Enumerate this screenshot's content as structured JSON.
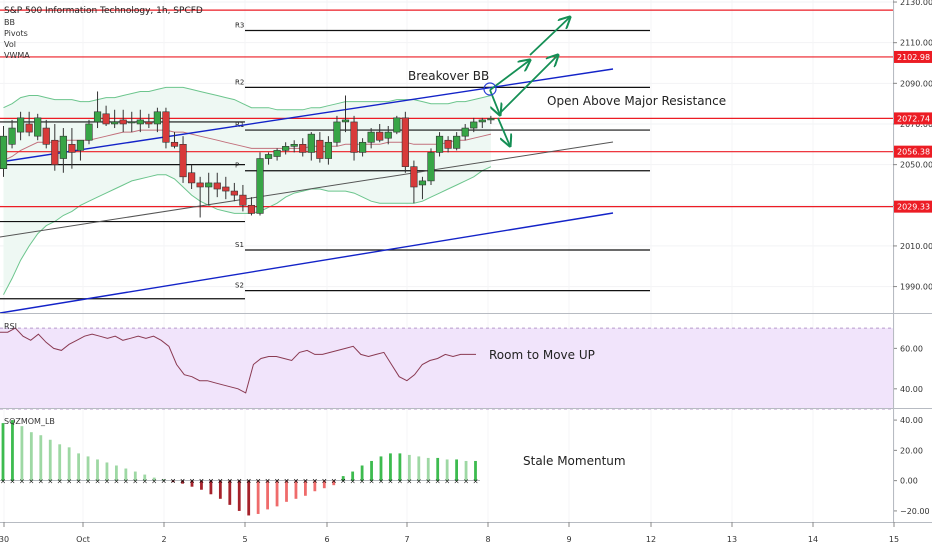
{
  "chart_data": {
    "type": "candlestick",
    "title": "S&P 500 Information Technology, 1h, SPCFD",
    "indicators": [
      "BB",
      "Pivots",
      "Vol",
      "VWMA"
    ],
    "price_axis": {
      "ylim": [
        1977,
        2131
      ],
      "ticks": [
        1990,
        2010,
        2030,
        2050,
        2070,
        2090,
        2110,
        2130
      ],
      "tick_labels": [
        "1990.00",
        "2010.00",
        "2030.00",
        "2050.00",
        "2070.00",
        "2090.00",
        "2110.00",
        "2130.00"
      ]
    },
    "x_axis": {
      "labels": [
        "30",
        "Oct",
        "2",
        "5",
        "6",
        "7",
        "8",
        "9",
        "12",
        "13",
        "14",
        "15"
      ]
    },
    "price_badges": [
      {
        "value": "2102.98",
        "price": 2102.98
      },
      {
        "value": "2072.74",
        "price": 2072.74
      },
      {
        "value": "2056.38",
        "price": 2056.38
      },
      {
        "value": "2029.33",
        "price": 2029.33
      }
    ],
    "horizontal_levels": [
      2126,
      2102.98,
      2072.74,
      2056.38,
      2029.33
    ],
    "pivots_left": [
      2071,
      2050,
      2022,
      1984
    ],
    "pivots_right": [
      {
        "label": "R3",
        "price": 2116
      },
      {
        "label": "R2",
        "price": 2088
      },
      {
        "label": "R1",
        "price": 2067
      },
      {
        "label": "P",
        "price": 2047
      },
      {
        "label": "S1",
        "price": 2008
      },
      {
        "label": "S2",
        "price": 1988
      }
    ],
    "candles": [
      {
        "o": 2048,
        "h": 2069,
        "l": 2044,
        "c": 2064
      },
      {
        "o": 2060,
        "h": 2072,
        "l": 2058,
        "c": 2068
      },
      {
        "o": 2066,
        "h": 2076,
        "l": 2062,
        "c": 2073
      },
      {
        "o": 2070,
        "h": 2076,
        "l": 2064,
        "c": 2066
      },
      {
        "o": 2064,
        "h": 2075,
        "l": 2062,
        "c": 2073
      },
      {
        "o": 2068,
        "h": 2072,
        "l": 2058,
        "c": 2060
      },
      {
        "o": 2062,
        "h": 2070,
        "l": 2047,
        "c": 2050
      },
      {
        "o": 2053,
        "h": 2068,
        "l": 2046,
        "c": 2064
      },
      {
        "o": 2060,
        "h": 2068,
        "l": 2048,
        "c": 2056
      },
      {
        "o": 2057,
        "h": 2062,
        "l": 2052,
        "c": 2062
      },
      {
        "o": 2062,
        "h": 2072,
        "l": 2060,
        "c": 2070
      },
      {
        "o": 2071,
        "h": 2086,
        "l": 2068,
        "c": 2076
      },
      {
        "o": 2075,
        "h": 2079,
        "l": 2069,
        "c": 2070
      },
      {
        "o": 2070,
        "h": 2077,
        "l": 2068,
        "c": 2071
      },
      {
        "o": 2072,
        "h": 2077,
        "l": 2066,
        "c": 2070
      },
      {
        "o": 2071,
        "h": 2076,
        "l": 2066,
        "c": 2071
      },
      {
        "o": 2070,
        "h": 2077,
        "l": 2066,
        "c": 2072
      },
      {
        "o": 2071,
        "h": 2075,
        "l": 2068,
        "c": 2070
      },
      {
        "o": 2070,
        "h": 2078,
        "l": 2066,
        "c": 2076
      },
      {
        "o": 2076,
        "h": 2078,
        "l": 2058,
        "c": 2061
      },
      {
        "o": 2061,
        "h": 2066,
        "l": 2058,
        "c": 2059
      },
      {
        "o": 2060,
        "h": 2064,
        "l": 2041,
        "c": 2044
      },
      {
        "o": 2046,
        "h": 2050,
        "l": 2038,
        "c": 2041
      },
      {
        "o": 2041,
        "h": 2044,
        "l": 2024,
        "c": 2039
      },
      {
        "o": 2039,
        "h": 2046,
        "l": 2030,
        "c": 2041
      },
      {
        "o": 2041,
        "h": 2046,
        "l": 2034,
        "c": 2038
      },
      {
        "o": 2039,
        "h": 2044,
        "l": 2033,
        "c": 2037
      },
      {
        "o": 2037,
        "h": 2041,
        "l": 2032,
        "c": 2035
      },
      {
        "o": 2035,
        "h": 2040,
        "l": 2027,
        "c": 2030
      },
      {
        "o": 2030,
        "h": 2034,
        "l": 2025,
        "c": 2026
      },
      {
        "o": 2026,
        "h": 2056,
        "l": 2025,
        "c": 2053
      },
      {
        "o": 2053,
        "h": 2056,
        "l": 2050,
        "c": 2055
      },
      {
        "o": 2054,
        "h": 2058,
        "l": 2052,
        "c": 2057
      },
      {
        "o": 2057,
        "h": 2061,
        "l": 2055,
        "c": 2059
      },
      {
        "o": 2059,
        "h": 2062,
        "l": 2056,
        "c": 2060
      },
      {
        "o": 2060,
        "h": 2063,
        "l": 2054,
        "c": 2056
      },
      {
        "o": 2056,
        "h": 2066,
        "l": 2052,
        "c": 2065
      },
      {
        "o": 2062,
        "h": 2066,
        "l": 2051,
        "c": 2053
      },
      {
        "o": 2053,
        "h": 2064,
        "l": 2050,
        "c": 2061
      },
      {
        "o": 2061,
        "h": 2074,
        "l": 2059,
        "c": 2071
      },
      {
        "o": 2071,
        "h": 2084,
        "l": 2066,
        "c": 2072
      },
      {
        "o": 2071,
        "h": 2074,
        "l": 2052,
        "c": 2056
      },
      {
        "o": 2056,
        "h": 2063,
        "l": 2054,
        "c": 2061
      },
      {
        "o": 2061,
        "h": 2068,
        "l": 2058,
        "c": 2066
      },
      {
        "o": 2066,
        "h": 2070,
        "l": 2061,
        "c": 2062
      },
      {
        "o": 2063,
        "h": 2069,
        "l": 2060,
        "c": 2066
      },
      {
        "o": 2066,
        "h": 2074,
        "l": 2065,
        "c": 2073
      },
      {
        "o": 2073,
        "h": 2076,
        "l": 2046,
        "c": 2049
      },
      {
        "o": 2049,
        "h": 2052,
        "l": 2031,
        "c": 2039
      },
      {
        "o": 2040,
        "h": 2044,
        "l": 2033,
        "c": 2042
      },
      {
        "o": 2042,
        "h": 2058,
        "l": 2040,
        "c": 2056
      },
      {
        "o": 2056,
        "h": 2066,
        "l": 2054,
        "c": 2064
      },
      {
        "o": 2062,
        "h": 2064,
        "l": 2056,
        "c": 2058
      },
      {
        "o": 2058,
        "h": 2066,
        "l": 2057,
        "c": 2064
      },
      {
        "o": 2064,
        "h": 2070,
        "l": 2062,
        "c": 2068
      },
      {
        "o": 2068,
        "h": 2073,
        "l": 2066,
        "c": 2071
      },
      {
        "o": 2071,
        "h": 2073,
        "l": 2068,
        "c": 2072
      },
      {
        "o": 2072,
        "h": 2074,
        "l": 2070,
        "c": 2072.7
      }
    ],
    "bb_upper": [
      2078,
      2080,
      2083,
      2084,
      2084,
      2083,
      2082,
      2082,
      2082,
      2081,
      2081,
      2082,
      2083,
      2083,
      2084,
      2085,
      2086,
      2086,
      2087,
      2088,
      2088,
      2088,
      2087,
      2086,
      2085,
      2084,
      2083,
      2082,
      2080,
      2078,
      2078,
      2078,
      2077,
      2077,
      2077,
      2077,
      2078,
      2078,
      2079,
      2080,
      2081,
      2081,
      2081,
      2081,
      2081,
      2081,
      2082,
      2082,
      2082,
      2081,
      2080,
      2080,
      2080,
      2081,
      2081,
      2082,
      2083,
      2084
    ],
    "bb_middle": [
      2052,
      2054,
      2057,
      2059,
      2061,
      2061,
      2061,
      2062,
      2062,
      2062,
      2062,
      2063,
      2064,
      2065,
      2066,
      2066,
      2067,
      2067,
      2067,
      2067,
      2066,
      2066,
      2065,
      2064,
      2063,
      2062,
      2061,
      2060,
      2059,
      2058,
      2058,
      2058,
      2058,
      2058,
      2058,
      2058,
      2059,
      2059,
      2059,
      2059,
      2060,
      2060,
      2060,
      2060,
      2060,
      2061,
      2061,
      2061,
      2060,
      2060,
      2060,
      2060,
      2061,
      2062,
      2062,
      2063,
      2064,
      2065
    ],
    "bb_lower": [
      1986,
      1994,
      2003,
      2010,
      2016,
      2020,
      2022,
      2025,
      2027,
      2030,
      2032,
      2034,
      2036,
      2038,
      2040,
      2042,
      2043,
      2044,
      2045,
      2045,
      2043,
      2039,
      2035,
      2032,
      2030,
      2028,
      2027,
      2026,
      2026,
      2026,
      2027,
      2029,
      2031,
      2034,
      2036,
      2037,
      2038,
      2038,
      2037,
      2037,
      2037,
      2036,
      2034,
      2032,
      2031,
      2031,
      2031,
      2031,
      2031,
      2032,
      2034,
      2036,
      2038,
      2040,
      2042,
      2044,
      2047,
      2049
    ],
    "bb_start_index": 0,
    "rsi": {
      "label": "RSI",
      "ylim": [
        32,
        76
      ],
      "ticks": [
        40,
        60
      ],
      "tick_labels": [
        "40.00",
        "60.00"
      ],
      "band": [
        30,
        70
      ],
      "values": [
        68,
        68,
        70,
        66,
        64,
        67,
        63,
        60,
        59,
        62,
        64,
        66,
        67,
        66,
        65,
        66,
        64,
        65,
        66,
        65,
        66,
        64,
        61,
        52,
        47,
        46,
        44,
        44,
        43,
        42,
        41,
        40,
        38,
        52,
        55,
        56,
        56,
        55,
        54,
        58,
        59,
        57,
        57,
        58,
        59,
        60,
        61,
        57,
        56,
        57,
        58,
        52,
        46,
        44,
        47,
        52,
        54,
        55,
        57,
        56,
        57,
        57,
        57
      ],
      "last_index": 62,
      "annotation": "Room to Move UP"
    },
    "momentum": {
      "label": "SQZMOM_LB",
      "ylim": [
        -26,
        46
      ],
      "ticks": [
        -20,
        0,
        20,
        40
      ],
      "tick_labels": [
        "−20.00",
        "0.00",
        "20.00",
        "40.00"
      ],
      "values": [
        38,
        40,
        36,
        32,
        30,
        27,
        24,
        22,
        18,
        16,
        14,
        12,
        10,
        8,
        6,
        4,
        2,
        1,
        -1,
        -2,
        -4,
        -6,
        -9,
        -12,
        -16,
        -20,
        -23,
        -22,
        -19,
        -17,
        -14,
        -12,
        -10,
        -7,
        -5,
        -3,
        3,
        6,
        10,
        13,
        16,
        18,
        18,
        17,
        16,
        15,
        15,
        14,
        14,
        13,
        13
      ],
      "annotation": "Stale Momentum"
    },
    "annotations": {
      "breakover": "Breakover BB",
      "resistance": "Open Above Major Resistance"
    },
    "colors": {
      "up": "#37a546",
      "down": "#d83a3a",
      "resistance": "#ec1c24",
      "channel": "#1323c8",
      "arrow": "#158f55",
      "bb_line": "#6cc58d",
      "bb_fill": "#eef8f3",
      "rsi_line": "#8a3a52",
      "rsi_band": "#f1e4fb",
      "mom_up_strong": "#3dbb4f",
      "mom_up_weak": "#9ed8a4",
      "mom_down_strong": "#a5222b",
      "mom_down_weak": "#ef6b6b"
    }
  }
}
